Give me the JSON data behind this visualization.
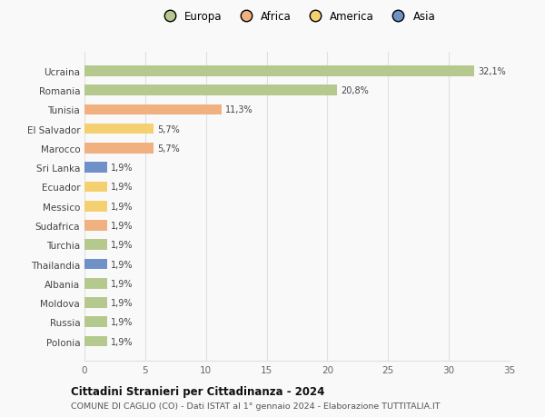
{
  "countries": [
    "Polonia",
    "Russia",
    "Moldova",
    "Albania",
    "Thailandia",
    "Turchia",
    "Sudafrica",
    "Messico",
    "Ecuador",
    "Sri Lanka",
    "Marocco",
    "El Salvador",
    "Tunisia",
    "Romania",
    "Ucraina"
  ],
  "values": [
    1.9,
    1.9,
    1.9,
    1.9,
    1.9,
    1.9,
    1.9,
    1.9,
    1.9,
    1.9,
    5.7,
    5.7,
    11.3,
    20.8,
    32.1
  ],
  "labels": [
    "1,9%",
    "1,9%",
    "1,9%",
    "1,9%",
    "1,9%",
    "1,9%",
    "1,9%",
    "1,9%",
    "1,9%",
    "1,9%",
    "5,7%",
    "5,7%",
    "11,3%",
    "20,8%",
    "32,1%"
  ],
  "continents": [
    "Europa",
    "Europa",
    "Europa",
    "Europa",
    "Asia",
    "Europa",
    "Africa",
    "America",
    "America",
    "Asia",
    "Africa",
    "America",
    "Africa",
    "Europa",
    "Europa"
  ],
  "continent_colors": {
    "Europa": "#b5c98e",
    "Africa": "#f0b080",
    "America": "#f5d070",
    "Asia": "#7090c8"
  },
  "legend_order": [
    "Europa",
    "Africa",
    "America",
    "Asia"
  ],
  "title": "Cittadini Stranieri per Cittadinanza - 2024",
  "subtitle": "COMUNE DI CAGLIO (CO) - Dati ISTAT al 1° gennaio 2024 - Elaborazione TUTTITALIA.IT",
  "xlim": [
    0,
    35
  ],
  "xticks": [
    0,
    5,
    10,
    15,
    20,
    25,
    30,
    35
  ],
  "background_color": "#f9f9f9",
  "grid_color": "#e0e0e0",
  "bar_height": 0.55
}
